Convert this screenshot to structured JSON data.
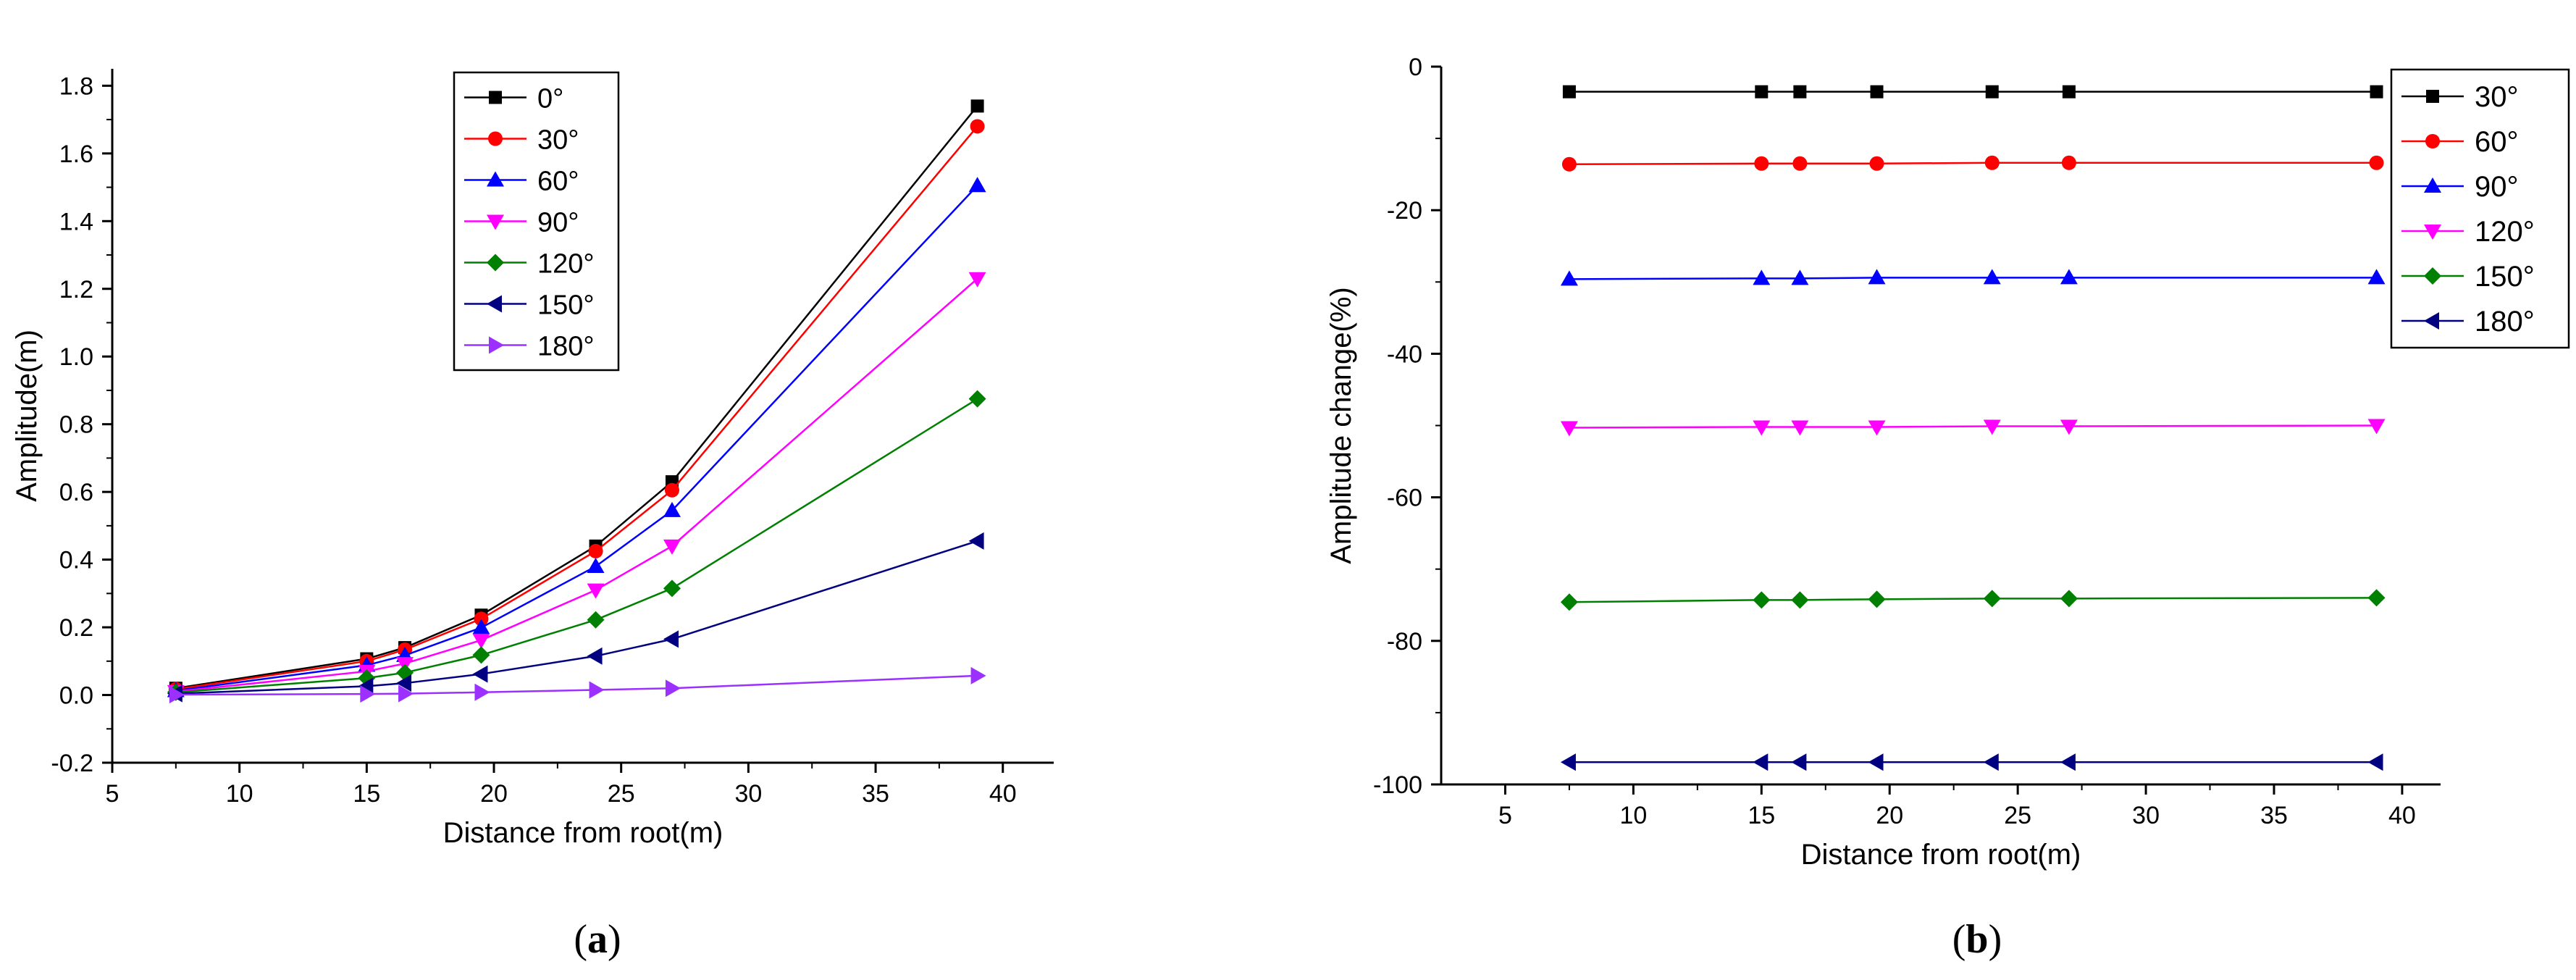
{
  "chart_data": [
    {
      "type": "line",
      "panel_label": "a",
      "xlabel": "Distance from root(m)",
      "ylabel": "Amplitude(m)",
      "xlim": [
        5,
        42
      ],
      "ylim": [
        -0.2,
        1.85
      ],
      "xticks": [
        5,
        10,
        15,
        20,
        25,
        30,
        35,
        40
      ],
      "yticks": [
        -0.2,
        0.0,
        0.2,
        0.4,
        0.6,
        0.8,
        1.0,
        1.2,
        1.4,
        1.6,
        1.8
      ],
      "ytick_labels": [
        "-0.2",
        "0.0",
        "0.2",
        "0.4",
        "0.6",
        "0.8",
        "1.0",
        "1.2",
        "1.4",
        "1.6",
        "1.8"
      ],
      "legend_position": "top-center",
      "x": [
        7.5,
        15,
        16.5,
        19.5,
        24,
        27,
        39
      ],
      "series": [
        {
          "name": "0°",
          "color": "#000000",
          "marker": "square",
          "values": [
            0.02,
            0.107,
            0.14,
            0.236,
            0.44,
            0.63,
            1.74
          ]
        },
        {
          "name": "30°",
          "color": "#ff0000",
          "marker": "circle",
          "values": [
            0.017,
            0.1,
            0.134,
            0.225,
            0.425,
            0.605,
            1.68
          ]
        },
        {
          "name": "60°",
          "color": "#0000ff",
          "marker": "triangle-up",
          "values": [
            0.013,
            0.088,
            0.117,
            0.199,
            0.38,
            0.545,
            1.505
          ]
        },
        {
          "name": "90°",
          "color": "#ff00ff",
          "marker": "triangle-down",
          "values": [
            0.01,
            0.07,
            0.093,
            0.162,
            0.31,
            0.44,
            1.23
          ]
        },
        {
          "name": "120°",
          "color": "#008000",
          "marker": "diamond",
          "values": [
            0.008,
            0.05,
            0.066,
            0.118,
            0.222,
            0.315,
            0.875
          ]
        },
        {
          "name": "150°",
          "color": "#000080",
          "marker": "triangle-left",
          "values": [
            0.004,
            0.026,
            0.035,
            0.062,
            0.115,
            0.165,
            0.455
          ]
        },
        {
          "name": "180°",
          "color": "#9b30ff",
          "marker": "triangle-right",
          "values": [
            0.001,
            0.003,
            0.004,
            0.008,
            0.015,
            0.02,
            0.057
          ]
        }
      ]
    },
    {
      "type": "line",
      "panel_label": "b",
      "xlabel": "Distance from root(m)",
      "ylabel": "Amplitude change(%)",
      "xlim": [
        2.5,
        41.5
      ],
      "ylim": [
        -100,
        0
      ],
      "xticks": [
        5,
        10,
        15,
        20,
        25,
        30,
        35,
        40
      ],
      "yticks": [
        0,
        -20,
        -40,
        -60,
        -80,
        -100
      ],
      "ytick_labels": [
        "0",
        "-20",
        "-40",
        "-60",
        "-80",
        "-100"
      ],
      "legend_position": "top-right",
      "x": [
        7.5,
        15,
        16.5,
        19.5,
        24,
        27,
        39
      ],
      "series": [
        {
          "name": "30°",
          "color": "#000000",
          "marker": "square",
          "values": [
            -3.5,
            -3.5,
            -3.5,
            -3.5,
            -3.5,
            -3.5,
            -3.5
          ]
        },
        {
          "name": "60°",
          "color": "#ff0000",
          "marker": "circle",
          "values": [
            -13.6,
            -13.5,
            -13.5,
            -13.5,
            -13.4,
            -13.4,
            -13.4
          ]
        },
        {
          "name": "90°",
          "color": "#0000ff",
          "marker": "triangle-up",
          "values": [
            -29.6,
            -29.5,
            -29.5,
            -29.4,
            -29.4,
            -29.4,
            -29.4
          ]
        },
        {
          "name": "120°",
          "color": "#ff00ff",
          "marker": "triangle-down",
          "values": [
            -50.3,
            -50.2,
            -50.2,
            -50.2,
            -50.1,
            -50.1,
            -50.0
          ]
        },
        {
          "name": "150°",
          "color": "#008000",
          "marker": "diamond",
          "values": [
            -74.6,
            -74.3,
            -74.3,
            -74.2,
            -74.1,
            -74.1,
            -74.0
          ]
        },
        {
          "name": "180°",
          "color": "#000080",
          "marker": "triangle-left",
          "values": [
            -96.9,
            -96.9,
            -96.9,
            -96.9,
            -96.9,
            -96.9,
            -96.9
          ]
        }
      ]
    }
  ]
}
